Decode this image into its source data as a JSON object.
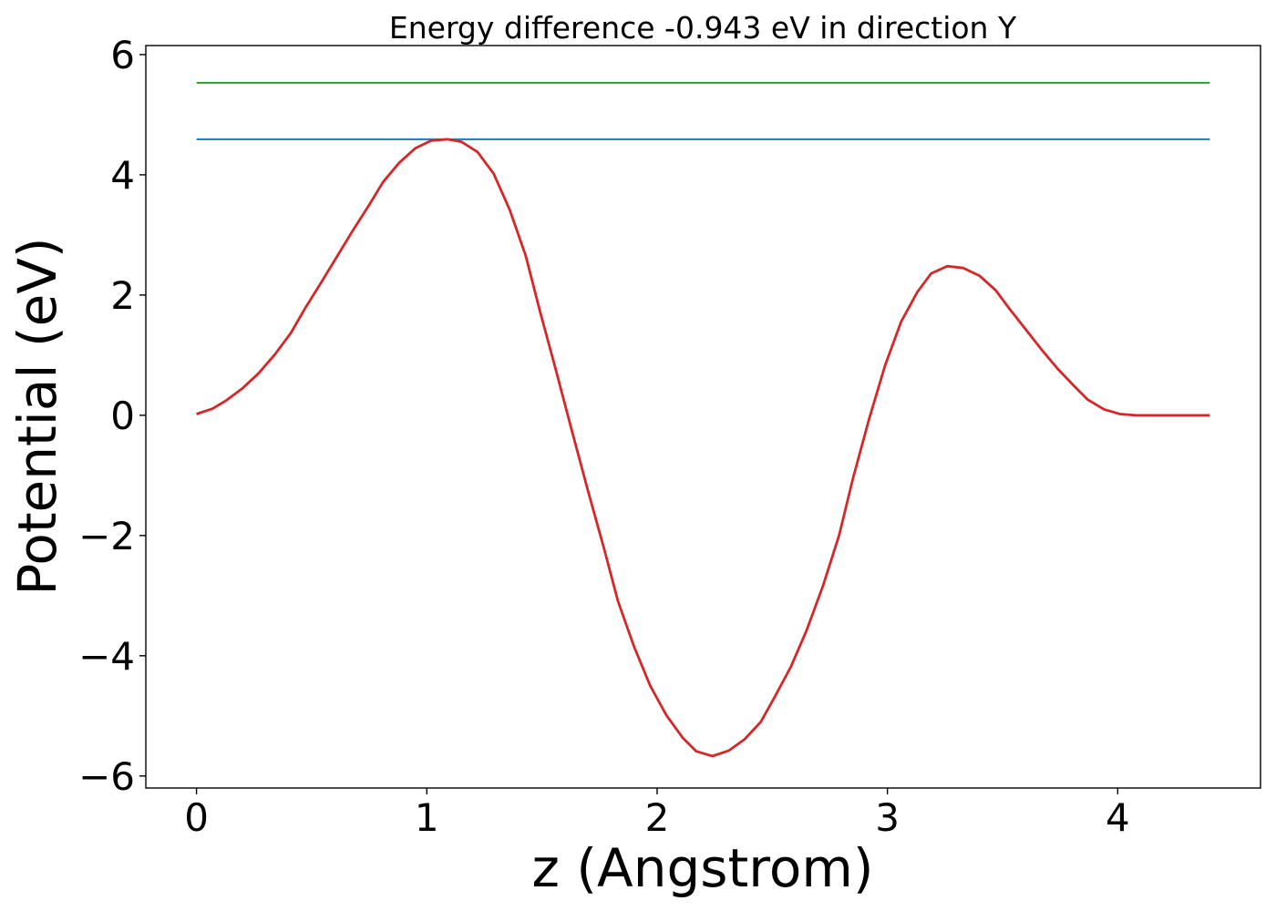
{
  "chart_data": {
    "type": "line",
    "title": "Energy difference -0.943 eV in direction Y",
    "xlabel": "z (Angstrom)",
    "ylabel": "Potential (eV)",
    "xlim": [
      -0.22,
      4.62
    ],
    "ylim": [
      -6.2,
      6.15
    ],
    "grid": false,
    "xticks": [
      0,
      1,
      2,
      3,
      4
    ],
    "xtick_labels": [
      "0",
      "1",
      "2",
      "3",
      "4"
    ],
    "yticks": [
      -6,
      -4,
      -2,
      0,
      2,
      4,
      6
    ],
    "ytick_labels": [
      "−6",
      "−4",
      "−2",
      "0",
      "2",
      "4",
      "6"
    ],
    "series": [
      {
        "color": "#2ca02c",
        "x": [
          0,
          4.4
        ],
        "y": [
          5.53,
          5.53
        ]
      },
      {
        "color": "#1f77b4",
        "x": [
          0,
          4.4
        ],
        "y": [
          4.59,
          4.59
        ]
      },
      {
        "color": "#d62728",
        "x": [
          0.0,
          0.07,
          0.13,
          0.2,
          0.27,
          0.34,
          0.41,
          0.47,
          0.54,
          0.61,
          0.68,
          0.75,
          0.81,
          0.88,
          0.95,
          1.02,
          1.09,
          1.15,
          1.22,
          1.29,
          1.36,
          1.43,
          1.49,
          1.56,
          1.63,
          1.7,
          1.77,
          1.83,
          1.9,
          1.97,
          2.04,
          2.11,
          2.17,
          2.24,
          2.31,
          2.38,
          2.45,
          2.51,
          2.58,
          2.65,
          2.72,
          2.79,
          2.85,
          2.92,
          2.99,
          3.06,
          3.13,
          3.19,
          3.26,
          3.33,
          3.4,
          3.47,
          3.53,
          3.6,
          3.67,
          3.74,
          3.81,
          3.87,
          3.94,
          4.01,
          4.08,
          4.15,
          4.21,
          4.28,
          4.35,
          4.4
        ],
        "y": [
          0.02,
          0.11,
          0.25,
          0.45,
          0.7,
          1.01,
          1.37,
          1.77,
          2.2,
          2.64,
          3.08,
          3.5,
          3.88,
          4.2,
          4.44,
          4.57,
          4.59,
          4.55,
          4.38,
          4.02,
          3.42,
          2.65,
          1.75,
          0.76,
          -0.26,
          -1.26,
          -2.22,
          -3.09,
          -3.85,
          -4.5,
          -4.99,
          -5.36,
          -5.59,
          -5.67,
          -5.58,
          -5.39,
          -5.1,
          -4.69,
          -4.19,
          -3.57,
          -2.84,
          -2.0,
          -1.06,
          -0.07,
          0.83,
          1.56,
          2.05,
          2.36,
          2.48,
          2.45,
          2.32,
          2.08,
          1.77,
          1.43,
          1.09,
          0.77,
          0.49,
          0.26,
          0.1,
          0.02,
          0.0,
          0.0,
          0.0,
          0.0,
          0.0,
          0.0
        ]
      }
    ]
  }
}
